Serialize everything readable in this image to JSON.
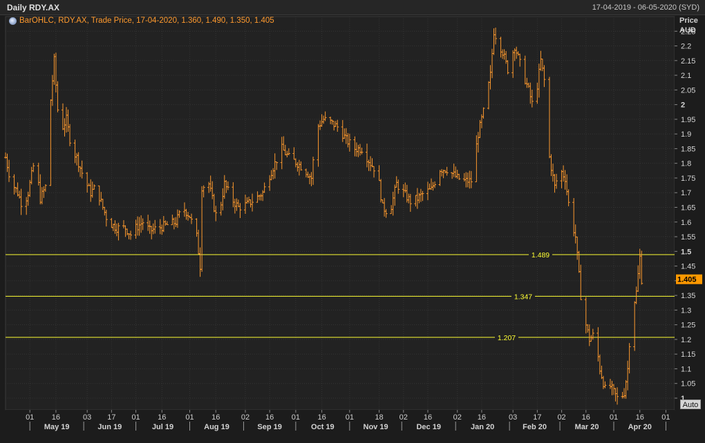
{
  "header": {
    "title": "Daily RDY.AX",
    "date_range": "17-04-2019 - 06-05-2020 (SYD)"
  },
  "legend": {
    "text": "BarOHLC, RDY.AX, Trade Price, 17-04-2020, 1.360, 1.490, 1.350, 1.405"
  },
  "controls": {
    "auto_label": "Auto"
  },
  "colors": {
    "background": "#1c1c1c",
    "plot_background": "#222222",
    "grid": "#343434",
    "bars": "#ff9a2e",
    "levels": "#ffff33",
    "last_price_badge": "#ff9900"
  },
  "chart_data": {
    "type": "bar",
    "subtype": "ohlc",
    "series_name": "RDY.AX",
    "yaxis": {
      "label_line1": "Price",
      "label_line2": "AUD",
      "ylim": [
        0.96,
        2.3
      ],
      "ticks": [
        "2.25",
        "2.2",
        "2.15",
        "2.1",
        "2.05",
        "2",
        "1.95",
        "1.9",
        "1.85",
        "1.8",
        "1.75",
        "1.7",
        "1.65",
        "1.6",
        "1.55",
        "1.5",
        "1.45",
        "1.4",
        "1.35",
        "1.3",
        "1.25",
        "1.2",
        "1.15",
        "1.1",
        "1.05",
        "1"
      ],
      "bold_ticks": [
        "2",
        "1.5",
        "1"
      ]
    },
    "xaxis": {
      "days": [
        "01",
        "16",
        "03",
        "17",
        "01",
        "16",
        "01",
        "16",
        "02",
        "16",
        "01",
        "16",
        "01",
        "18",
        "02",
        "16",
        "02",
        "16",
        "03",
        "17",
        "02",
        "16",
        "01",
        "16",
        "01"
      ],
      "months": [
        "May 19",
        "Jun 19",
        "Jul 19",
        "Aug 19",
        "Sep 19",
        "Oct 19",
        "Nov 19",
        "Dec 19",
        "Jan 20",
        "Feb 20",
        "Mar 20",
        "Apr 20"
      ]
    },
    "levels": [
      {
        "label": "1.489",
        "value": 1.489
      },
      {
        "label": "1.347",
        "value": 1.347
      },
      {
        "label": "1.207",
        "value": 1.207
      }
    ],
    "last_price": {
      "label": "1.405",
      "value": 1.405
    },
    "x_start_date": "2019-04-17",
    "x_end_date": "2020-05-06",
    "prices": [
      [
        "2019-04-17",
        1.82
      ],
      [
        "2019-04-20",
        1.74
      ],
      [
        "2019-04-24",
        1.7
      ],
      [
        "2019-04-27",
        1.65
      ],
      [
        "2019-04-30",
        1.7
      ],
      [
        "2019-05-04",
        1.82
      ],
      [
        "2019-05-07",
        1.68
      ],
      [
        "2019-05-10",
        1.72
      ],
      [
        "2019-05-12",
        1.95
      ],
      [
        "2019-05-15",
        2.15
      ],
      [
        "2019-05-18",
        1.9
      ],
      [
        "2019-05-22",
        1.95
      ],
      [
        "2019-05-25",
        1.85
      ],
      [
        "2019-05-28",
        1.82
      ],
      [
        "2019-06-01",
        1.75
      ],
      [
        "2019-06-05",
        1.7
      ],
      [
        "2019-06-08",
        1.72
      ],
      [
        "2019-06-12",
        1.65
      ],
      [
        "2019-06-15",
        1.6
      ],
      [
        "2019-06-20",
        1.58
      ],
      [
        "2019-06-25",
        1.58
      ],
      [
        "2019-06-29",
        1.55
      ],
      [
        "2019-07-01",
        1.58
      ],
      [
        "2019-07-05",
        1.6
      ],
      [
        "2019-07-09",
        1.57
      ],
      [
        "2019-07-14",
        1.58
      ],
      [
        "2019-07-19",
        1.59
      ],
      [
        "2019-07-24",
        1.6
      ],
      [
        "2019-07-28",
        1.65
      ],
      [
        "2019-08-01",
        1.62
      ],
      [
        "2019-08-05",
        1.55
      ],
      [
        "2019-08-07",
        1.45
      ],
      [
        "2019-08-08",
        1.72
      ],
      [
        "2019-08-12",
        1.73
      ],
      [
        "2019-08-15",
        1.65
      ],
      [
        "2019-08-17",
        1.6
      ],
      [
        "2019-08-21",
        1.73
      ],
      [
        "2019-08-25",
        1.68
      ],
      [
        "2019-08-29",
        1.65
      ],
      [
        "2019-09-03",
        1.66
      ],
      [
        "2019-09-08",
        1.68
      ],
      [
        "2019-09-12",
        1.7
      ],
      [
        "2019-09-16",
        1.76
      ],
      [
        "2019-09-19",
        1.8
      ],
      [
        "2019-09-23",
        1.85
      ],
      [
        "2019-09-27",
        1.82
      ],
      [
        "2019-10-02",
        1.8
      ],
      [
        "2019-10-06",
        1.78
      ],
      [
        "2019-10-10",
        1.75
      ],
      [
        "2019-10-13",
        1.92
      ],
      [
        "2019-10-17",
        1.95
      ],
      [
        "2019-10-21",
        1.94
      ],
      [
        "2019-10-26",
        1.92
      ],
      [
        "2019-10-30",
        1.88
      ],
      [
        "2019-11-04",
        1.85
      ],
      [
        "2019-11-08",
        1.85
      ],
      [
        "2019-11-13",
        1.8
      ],
      [
        "2019-11-17",
        1.77
      ],
      [
        "2019-11-20",
        1.65
      ],
      [
        "2019-11-24",
        1.63
      ],
      [
        "2019-11-28",
        1.73
      ],
      [
        "2019-12-02",
        1.7
      ],
      [
        "2019-12-06",
        1.67
      ],
      [
        "2019-12-10",
        1.68
      ],
      [
        "2019-12-14",
        1.7
      ],
      [
        "2019-12-18",
        1.71
      ],
      [
        "2019-12-23",
        1.78
      ],
      [
        "2019-12-27",
        1.78
      ],
      [
        "2020-01-02",
        1.75
      ],
      [
        "2020-01-06",
        1.74
      ],
      [
        "2020-01-10",
        1.74
      ],
      [
        "2020-01-14",
        1.9
      ],
      [
        "2020-01-18",
        2.0
      ],
      [
        "2020-01-21",
        2.1
      ],
      [
        "2020-01-23",
        2.25
      ],
      [
        "2020-01-28",
        2.18
      ],
      [
        "2020-01-31",
        2.12
      ],
      [
        "2020-02-04",
        2.2
      ],
      [
        "2020-02-08",
        2.12
      ],
      [
        "2020-02-12",
        2.05
      ],
      [
        "2020-02-15",
        1.98
      ],
      [
        "2020-02-19",
        2.15
      ],
      [
        "2020-02-22",
        2.05
      ],
      [
        "2020-02-24",
        1.82
      ],
      [
        "2020-02-27",
        1.72
      ],
      [
        "2020-03-01",
        1.78
      ],
      [
        "2020-03-04",
        1.75
      ],
      [
        "2020-03-07",
        1.62
      ],
      [
        "2020-03-10",
        1.55
      ],
      [
        "2020-03-13",
        1.35
      ],
      [
        "2020-03-16",
        1.25
      ],
      [
        "2020-03-18",
        1.2
      ],
      [
        "2020-03-21",
        1.22
      ],
      [
        "2020-03-24",
        1.1
      ],
      [
        "2020-03-27",
        1.03
      ],
      [
        "2020-03-29",
        1.05
      ],
      [
        "2020-04-01",
        1.02
      ],
      [
        "2020-04-04",
        0.99
      ],
      [
        "2020-04-07",
        1.02
      ],
      [
        "2020-04-09",
        1.1
      ],
      [
        "2020-04-11",
        1.28
      ],
      [
        "2020-04-14",
        1.36
      ],
      [
        "2020-04-16",
        1.48
      ],
      [
        "2020-04-17",
        1.405
      ]
    ]
  }
}
